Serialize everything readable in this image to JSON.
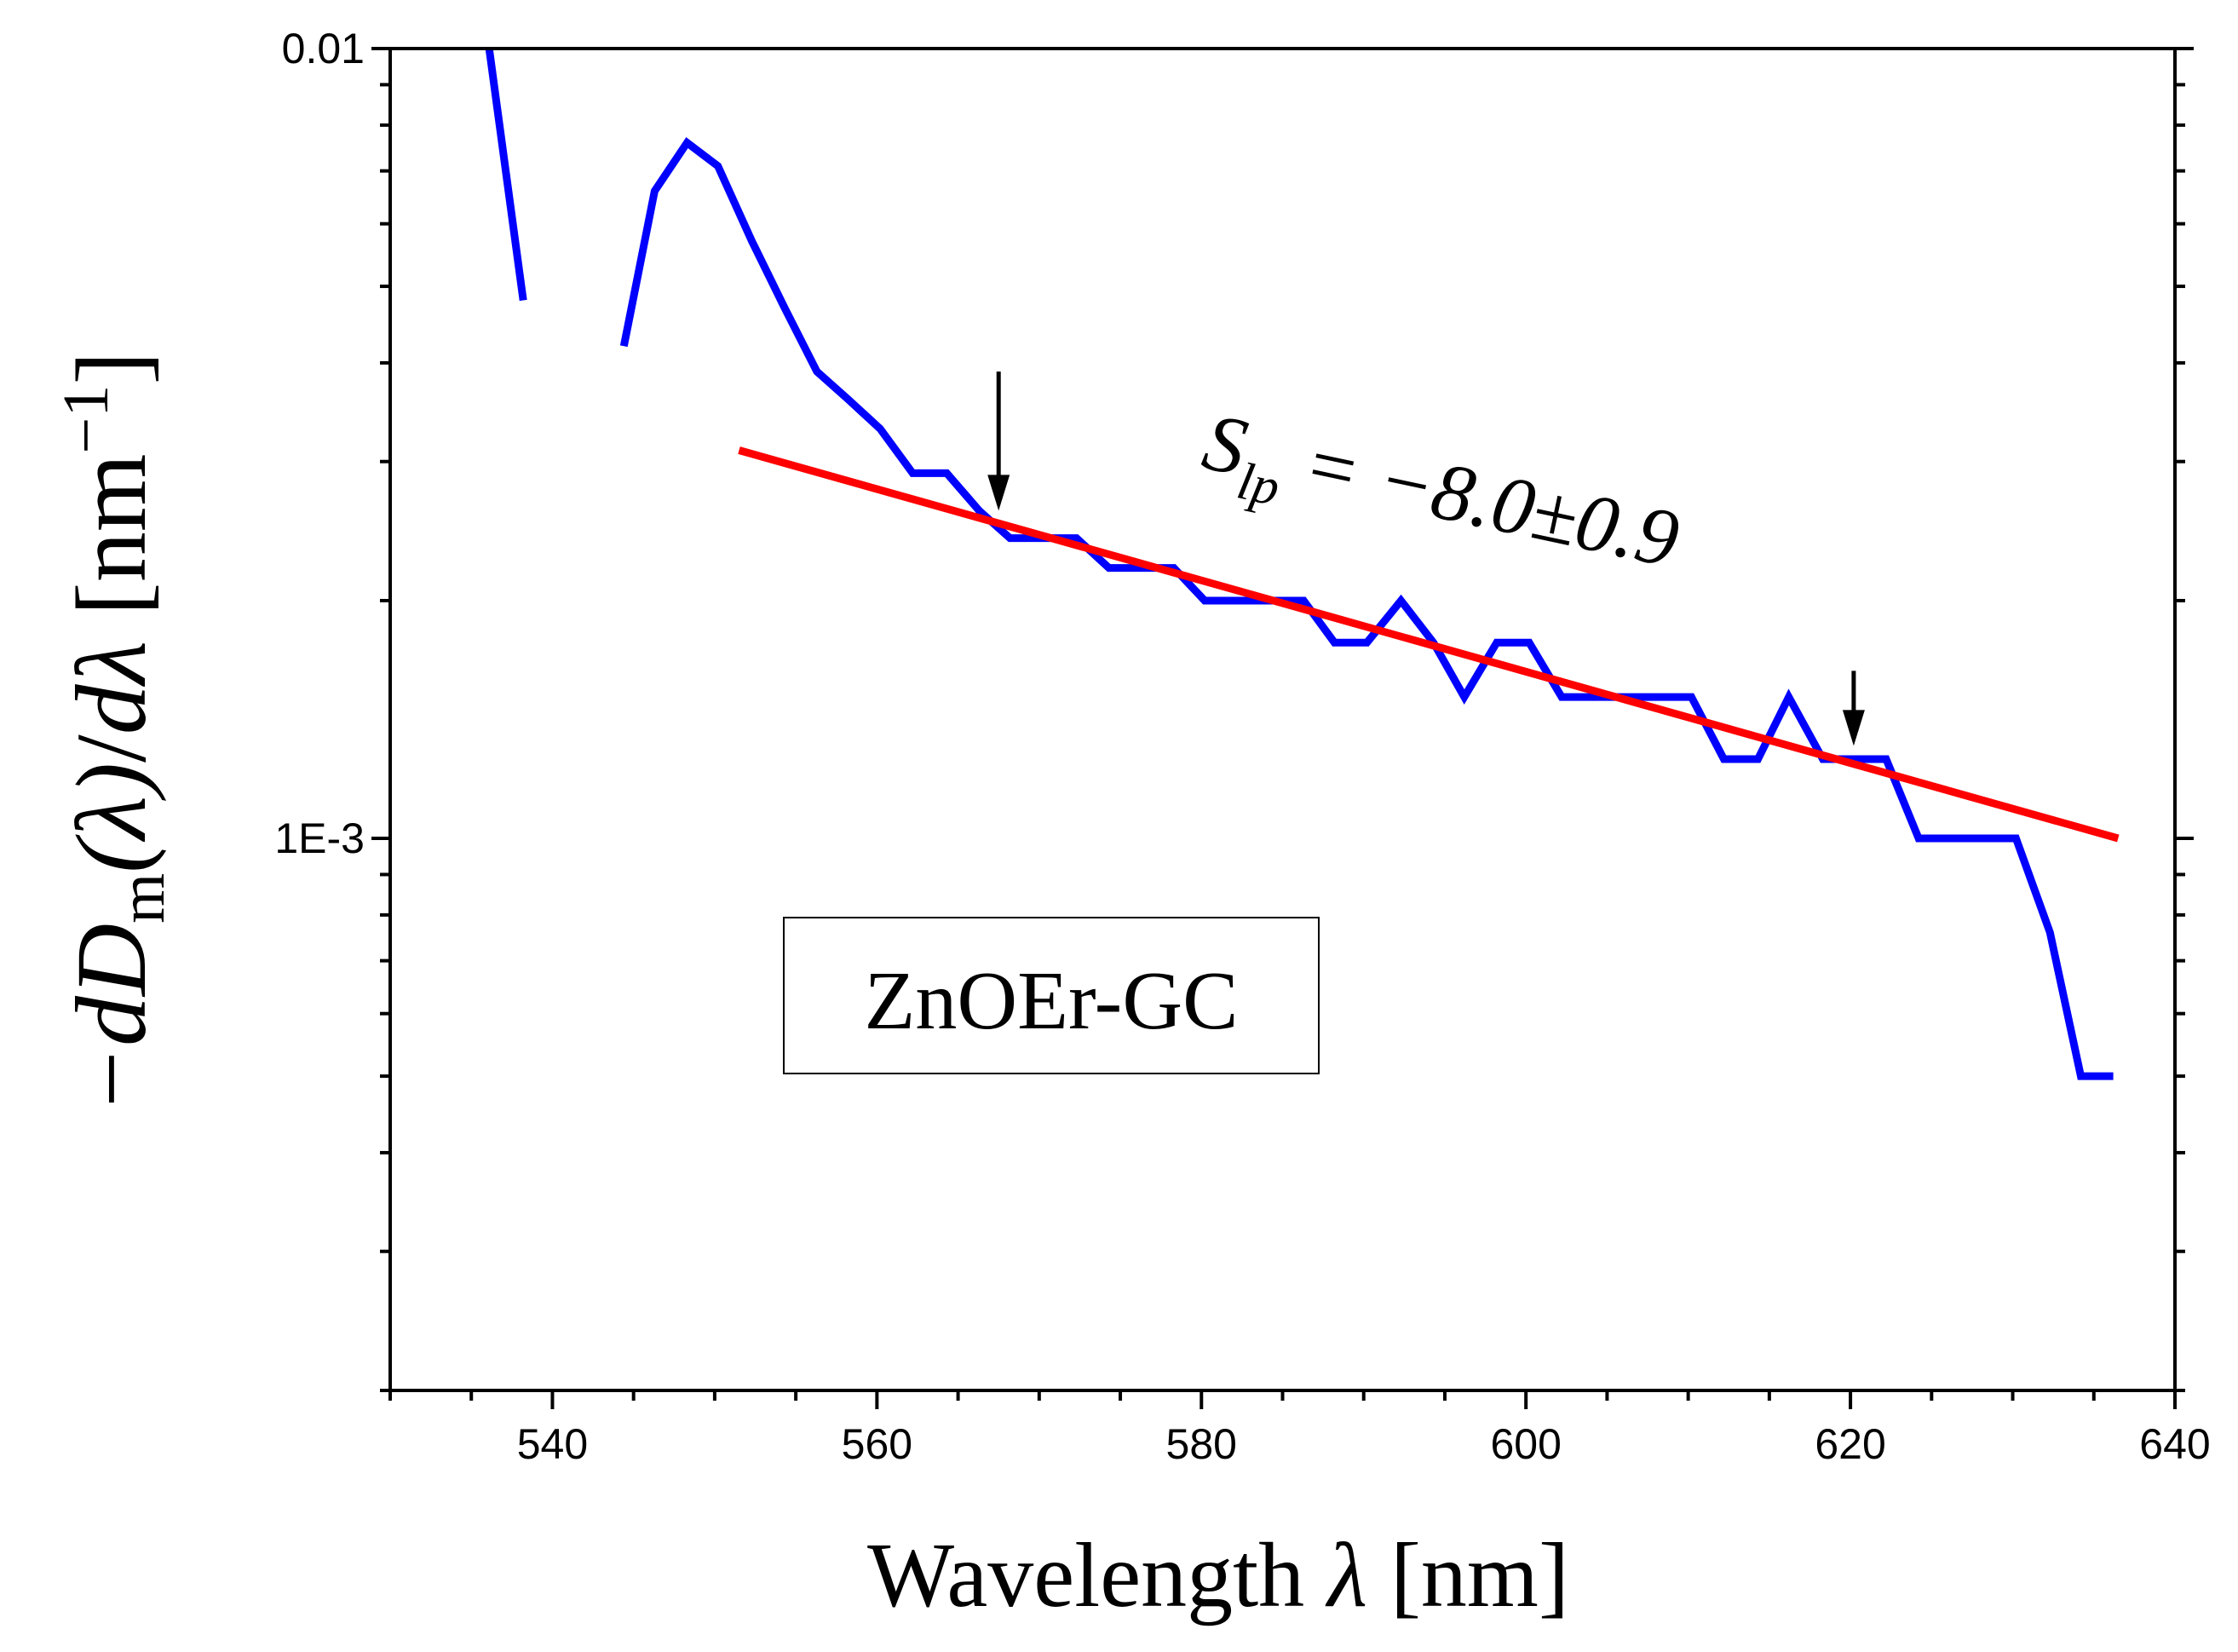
{
  "chart_data": {
    "type": "line",
    "xlabel": "Wavelength λ [nm]",
    "xlabel_parts": {
      "word": "Wavelength",
      "symbol": "λ",
      "unit": "[nm]"
    },
    "ylabel": "−dD_m(λ)/dλ [nm^−1]",
    "ylabel_parts": {
      "minus_d": "−d",
      "D": "D",
      "sub": "m",
      "paren_lambda": "(λ)",
      "slash": "/",
      "d_lambda": "dλ",
      "unit_open": "[nm",
      "unit_exp": "−1",
      "unit_close": "]"
    },
    "xlim": [
      530,
      640
    ],
    "ylim": [
      0.0002,
      0.01
    ],
    "yscale": "log",
    "x_ticks": [
      540,
      560,
      580,
      600,
      620,
      640
    ],
    "x_tick_labels": [
      "540",
      "560",
      "580",
      "600",
      "620",
      "640"
    ],
    "y_ticks": [
      0.01,
      0.001
    ],
    "y_tick_labels": [
      "0.01",
      "1E-3"
    ],
    "legend_box": "ZnOEr-GC",
    "annotation": {
      "symbol": "S",
      "subscript": "lp",
      "text": " = −8.0±0.9",
      "arrows_at_x": [
        567.5,
        620.2
      ]
    },
    "series": [
      {
        "name": "data-segment-1",
        "color": "#0000ff",
        "x": [
          536.1,
          538.2
        ],
        "y": [
          0.01,
          0.0048
        ]
      },
      {
        "name": "data-segment-2",
        "color": "#0000ff",
        "x": [
          544.4,
          546.3,
          548.3,
          550.2,
          552.3,
          554.3,
          556.3,
          558.2,
          560.2,
          562.2,
          564.3,
          566.3,
          568.2,
          570.3,
          572.3,
          574.3,
          576.3,
          578.3,
          580.2,
          582.2,
          584.3,
          586.3,
          588.2,
          590.2,
          592.3,
          594.3,
          596.2,
          598.2,
          600.2,
          602.2,
          604.2,
          606.2,
          608.2,
          610.2,
          612.2,
          614.3,
          616.2,
          618.3,
          620.2,
          622.2,
          624.2,
          626.3,
          628.2,
          630.2,
          632.3,
          634.2,
          636.2
        ],
        "y": [
          0.0042,
          0.0066,
          0.0076,
          0.0071,
          0.0057,
          0.0047,
          0.0039,
          0.0036,
          0.0033,
          0.0029,
          0.0029,
          0.0026,
          0.0024,
          0.0024,
          0.0024,
          0.0022,
          0.0022,
          0.0022,
          0.002,
          0.002,
          0.002,
          0.002,
          0.00177,
          0.00177,
          0.002,
          0.00177,
          0.00151,
          0.00177,
          0.00177,
          0.00151,
          0.00151,
          0.00151,
          0.00151,
          0.00151,
          0.00126,
          0.00126,
          0.00151,
          0.00126,
          0.00126,
          0.00126,
          0.001,
          0.001,
          0.001,
          0.001,
          0.00076,
          0.0005,
          0.0005
        ]
      },
      {
        "name": "linear-fit",
        "color": "#ff0000",
        "x": [
          551.5,
          636.5
        ],
        "y": [
          0.0031,
          0.001
        ]
      }
    ]
  }
}
